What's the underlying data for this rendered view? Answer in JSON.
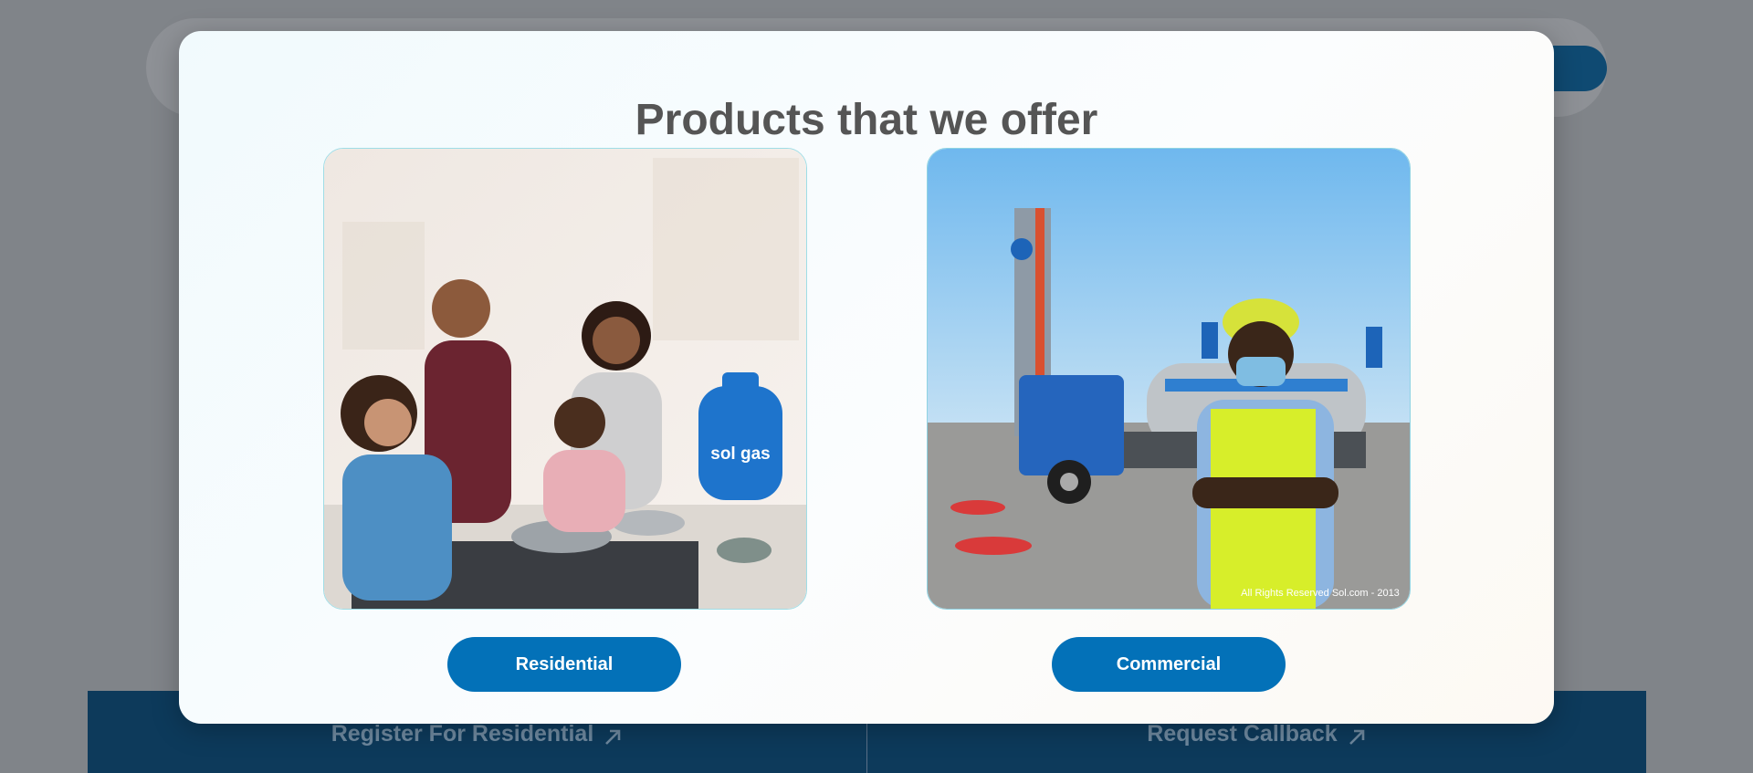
{
  "background": {
    "links": [
      {
        "label": "Register For Residential",
        "icon": "arrow-up-right-icon"
      },
      {
        "label": "Request Callback",
        "icon": "arrow-up-right-icon"
      }
    ]
  },
  "modal": {
    "title": "Products that we offer",
    "products": [
      {
        "label": "Residential",
        "image": "family-cooking-photo",
        "cylinder_brand": "sol gas"
      },
      {
        "label": "Commercial",
        "image": "worker-tanker-truck-photo",
        "watermark": "All Rights Reserved Sol.com - 2013"
      }
    ]
  },
  "colors": {
    "primary_button": "#0371b8",
    "bottom_bar": "#0d3a5b",
    "title_text": "#555555"
  }
}
